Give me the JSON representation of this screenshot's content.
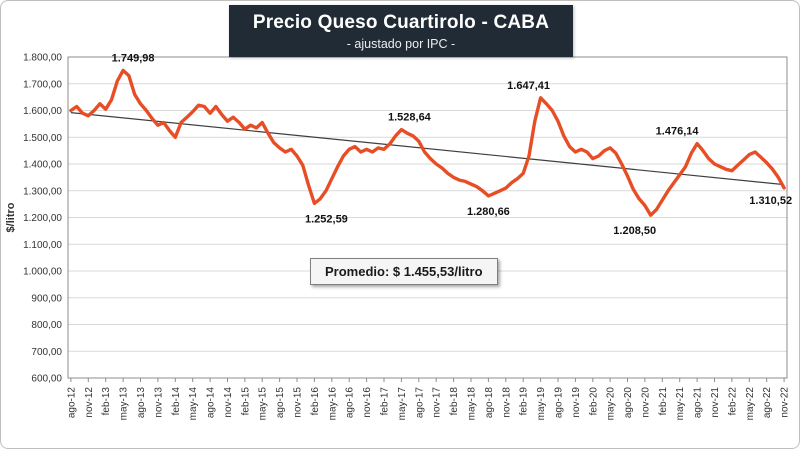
{
  "chart_data": {
    "type": "line",
    "title": "Precio Queso Cuartirolo - CABA",
    "subtitle": "- ajustado por IPC -",
    "ylabel": "$/litro",
    "ylim": [
      600,
      1800
    ],
    "grid": true,
    "grid_color": "#D9D9D9",
    "yticks": [
      {
        "value": 600,
        "label": "600,00"
      },
      {
        "value": 700,
        "label": "700,00"
      },
      {
        "value": 800,
        "label": "800,00"
      },
      {
        "value": 900,
        "label": "900,00"
      },
      {
        "value": 1000,
        "label": "1.000,00"
      },
      {
        "value": 1100,
        "label": "1.100,00"
      },
      {
        "value": 1200,
        "label": "1.200,00"
      },
      {
        "value": 1300,
        "label": "1.300,00"
      },
      {
        "value": 1400,
        "label": "1.400,00"
      },
      {
        "value": 1500,
        "label": "1.500,00"
      },
      {
        "value": 1600,
        "label": "1.600,00"
      },
      {
        "value": 1700,
        "label": "1.700,00"
      },
      {
        "value": 1800,
        "label": "1.800,00"
      }
    ],
    "x_tick_every": 3,
    "x_tick_labels": [
      "ago-12",
      "nov-12",
      "feb-13",
      "may-13",
      "ago-13",
      "nov-13",
      "feb-14",
      "may-14",
      "ago-14",
      "nov-14",
      "feb-15",
      "may-15",
      "ago-15",
      "nov-15",
      "feb-16",
      "may-16",
      "ago-16",
      "nov-16",
      "feb-17",
      "may-17",
      "ago-17",
      "nov-17",
      "feb-18",
      "may-18",
      "ago-18",
      "nov-18",
      "feb-19",
      "may-19",
      "ago-19",
      "nov-19",
      "feb-20",
      "may-20",
      "ago-20",
      "nov-20",
      "feb-21",
      "may-21",
      "ago-21",
      "nov-21",
      "feb-22",
      "may-22",
      "ago-22",
      "nov-22"
    ],
    "series": [
      {
        "name": "Precio Queso Cuartirolo ajustado por IPC",
        "color": "#E84E25",
        "values": [
          1600,
          1615,
          1590,
          1580,
          1600,
          1625,
          1605,
          1640,
          1710,
          1749.98,
          1730,
          1660,
          1625,
          1600,
          1570,
          1545,
          1555,
          1525,
          1500,
          1555,
          1575,
          1595,
          1620,
          1615,
          1590,
          1615,
          1585,
          1560,
          1575,
          1555,
          1530,
          1545,
          1535,
          1555,
          1515,
          1480,
          1460,
          1445,
          1455,
          1430,
          1395,
          1320,
          1252.59,
          1270,
          1300,
          1345,
          1390,
          1430,
          1455,
          1465,
          1445,
          1455,
          1445,
          1460,
          1455,
          1475,
          1505,
          1528.64,
          1515,
          1505,
          1485,
          1445,
          1420,
          1400,
          1385,
          1365,
          1350,
          1340,
          1335,
          1325,
          1315,
          1300,
          1280.66,
          1290,
          1300,
          1310,
          1330,
          1345,
          1365,
          1430,
          1560,
          1647.41,
          1625,
          1600,
          1560,
          1505,
          1465,
          1445,
          1455,
          1445,
          1420,
          1430,
          1450,
          1460,
          1440,
          1400,
          1355,
          1305,
          1270,
          1245,
          1208.5,
          1230,
          1265,
          1300,
          1330,
          1360,
          1390,
          1440,
          1476.14,
          1450,
          1420,
          1400,
          1390,
          1380,
          1375,
          1395,
          1415,
          1435,
          1445,
          1425,
          1405,
          1380,
          1350,
          1310.52
        ]
      }
    ],
    "trendline": {
      "start": 1592,
      "end": 1323,
      "color": "#3F3F3F"
    },
    "annotations": [
      {
        "index": 9,
        "text": "1.749,98",
        "position": "above",
        "dx": 10
      },
      {
        "index": 42,
        "text": "1.252,59",
        "position": "below",
        "dx": 12
      },
      {
        "index": 57,
        "text": "1.528,64",
        "position": "above",
        "dx": 8
      },
      {
        "index": 72,
        "text": "1.280,66",
        "position": "below",
        "dx": 0
      },
      {
        "index": 81,
        "text": "1.647,41",
        "position": "above",
        "dx": -12
      },
      {
        "index": 100,
        "text": "1.208,50",
        "position": "below",
        "dx": -16
      },
      {
        "index": 108,
        "text": "1.476,14",
        "position": "above",
        "dx": -20
      },
      {
        "index": 123,
        "text": "1.310,52",
        "position": "right",
        "dx": 0
      }
    ],
    "average_label": "Promedio: $ 1.455,53/litro",
    "legend": "none"
  }
}
